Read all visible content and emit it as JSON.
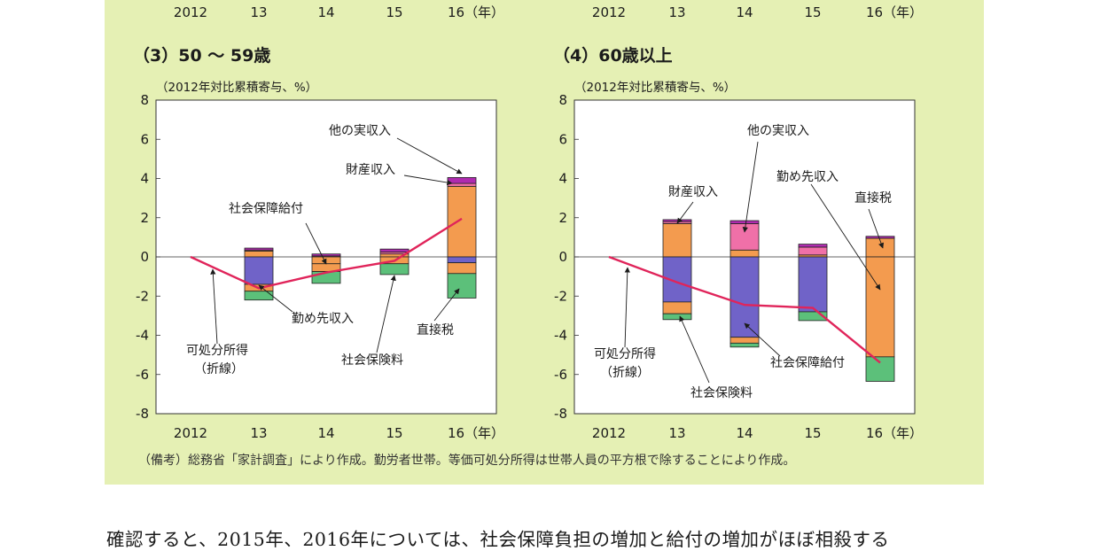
{
  "top_axis": {
    "left_labels": [
      "2012",
      "13",
      "14",
      "15",
      "16（年）"
    ],
    "right_labels": [
      "2012",
      "13",
      "14",
      "15",
      "16（年）"
    ]
  },
  "colors": {
    "panel_bg": "#e5f0b4",
    "other_income": "#b02bb0",
    "property_income": "#f070a8",
    "wages": "#f39b4f",
    "social_benefits": "#7063c8",
    "social_insurance": "#5cc07a",
    "direct_tax": "#f39b4f",
    "line": "#e0245a"
  },
  "footnote": "（備考）総務省「家計調査」により作成。勤労者世帯。等価可処分所得は世帯人員の平方根で除することにより作成。",
  "body_text": "確認すると、2015年、2016年については、社会保障負担の増加と給付の増加がほぼ相殺する",
  "chart_data": [
    {
      "type": "bar",
      "stacked": true,
      "title": "（3）50 ～ 59歳",
      "ylabel": "（2012年対比累積寄与、%）",
      "ylim": [
        -8,
        8
      ],
      "yticks": [
        "8",
        "6",
        "4",
        "2",
        "0",
        "-2",
        "-4",
        "-6",
        "-8"
      ],
      "categories": [
        "2012",
        "13",
        "14",
        "15",
        "16（年）"
      ],
      "series": [
        {
          "name": "他の実収入",
          "key": "other_income",
          "values": [
            0,
            0.1,
            0.1,
            0.15,
            0.3
          ]
        },
        {
          "name": "財産収入",
          "key": "property_income",
          "values": [
            0,
            0.05,
            0.05,
            0.1,
            0.15
          ]
        },
        {
          "name": "勤め先収入",
          "key": "wages",
          "values": [
            0,
            0.3,
            -0.35,
            0.15,
            3.6
          ]
        },
        {
          "name": "社会保障給付",
          "key": "social_benefits",
          "values": [
            0,
            -1.4,
            0.5,
            0.2,
            -0.3
          ]
        },
        {
          "name": "社会保険料",
          "key": "social_insurance",
          "values": [
            0,
            -0.45,
            -0.6,
            -0.55,
            -1.25
          ]
        },
        {
          "name": "直接税",
          "key": "direct_tax",
          "values": [
            0,
            -0.35,
            -0.4,
            -0.35,
            -0.55
          ]
        }
      ],
      "line": {
        "name": "可処分所得（折線）",
        "values": [
          0,
          -1.6,
          -0.8,
          -0.2,
          1.95
        ]
      },
      "annotations": [
        "他の実収入",
        "財産収入",
        "社会保障給付",
        "勤め先収入",
        "直接税",
        "可処分所得",
        "（折線）",
        "社会保険料"
      ]
    },
    {
      "type": "bar",
      "stacked": true,
      "title": "（4）60歳以上",
      "ylabel": "（2012年対比累積寄与、%）",
      "ylim": [
        -8,
        8
      ],
      "yticks": [
        "8",
        "6",
        "4",
        "2",
        "0",
        "-2",
        "-4",
        "-6",
        "-8"
      ],
      "categories": [
        "2012",
        "13",
        "14",
        "15",
        "16（年）"
      ],
      "series": [
        {
          "name": "他の実収入",
          "key": "other_income",
          "values": [
            0,
            0.1,
            0.15,
            0.15,
            0.1
          ]
        },
        {
          "name": "財産収入",
          "key": "property_income",
          "values": [
            0,
            0.1,
            1.35,
            0.4,
            0
          ]
        },
        {
          "name": "勤め先収入",
          "key": "wages",
          "values": [
            0,
            1.7,
            0.35,
            0.1,
            0.95
          ]
        },
        {
          "name": "社会保障給付",
          "key": "social_benefits",
          "values": [
            0,
            -2.3,
            -4.1,
            -2.8,
            0.15
          ]
        },
        {
          "name": "社会保険料",
          "key": "social_insurance",
          "values": [
            0,
            -0.3,
            -0.2,
            -0.45,
            -1.25
          ]
        },
        {
          "name": "直接税",
          "key": "direct_tax",
          "values": [
            0,
            -0.6,
            -0.3,
            0,
            -5.1
          ]
        }
      ],
      "line": {
        "name": "可処分所得（折線）",
        "values": [
          0,
          -1.3,
          -2.45,
          -2.6,
          -5.4
        ]
      },
      "annotations": [
        "他の実収入",
        "財産収入",
        "勤め先収入",
        "直接税",
        "可処分所得",
        "（折線）",
        "社会保険料",
        "社会保障給付"
      ]
    }
  ]
}
